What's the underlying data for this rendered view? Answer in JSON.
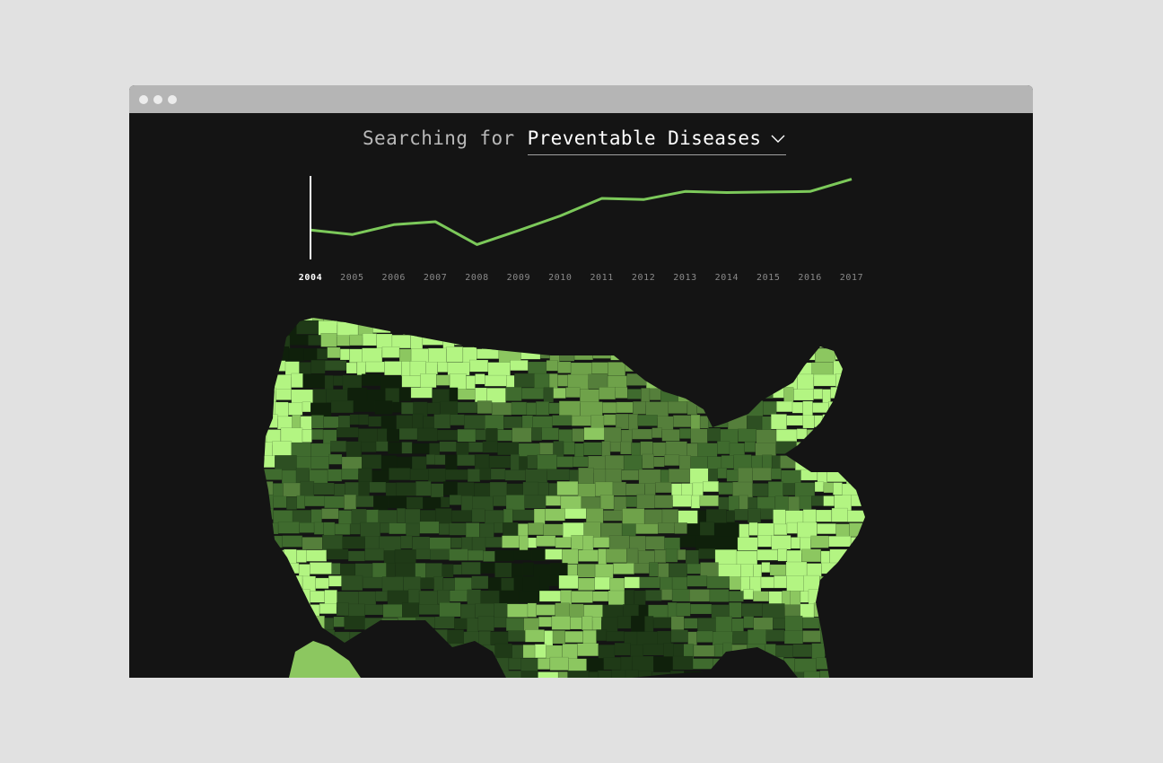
{
  "window": {
    "dots": [
      "dot-1",
      "dot-2",
      "dot-3"
    ]
  },
  "search": {
    "prefix": "Searching for",
    "topic": "Preventable Diseases",
    "dropdown_icon": "chevron-down-icon"
  },
  "colors": {
    "background": "#141414",
    "line": "#7cc95a",
    "cursor": "#ffffff",
    "year_active": "#ffffff",
    "year_inactive": "#8a8a8a",
    "map_palette": [
      "#0f200b",
      "#1f3a17",
      "#2d4f22",
      "#3f6b2e",
      "#557f3b",
      "#6fa24a",
      "#8cc760",
      "#b3f582"
    ]
  },
  "chart_data": {
    "type": "line",
    "title": "",
    "xlabel": "",
    "ylabel": "",
    "x": [
      "2004",
      "2005",
      "2006",
      "2007",
      "2008",
      "2009",
      "2010",
      "2011",
      "2012",
      "2013",
      "2014",
      "2015",
      "2016",
      "2017"
    ],
    "series": [
      {
        "values": [
          49,
          41,
          58,
          63,
          24,
          48,
          73,
          103,
          101,
          115,
          113,
          114,
          115,
          136
        ]
      }
    ],
    "ylim": [
      0,
      140
    ],
    "selected": "2004",
    "grid": false
  }
}
